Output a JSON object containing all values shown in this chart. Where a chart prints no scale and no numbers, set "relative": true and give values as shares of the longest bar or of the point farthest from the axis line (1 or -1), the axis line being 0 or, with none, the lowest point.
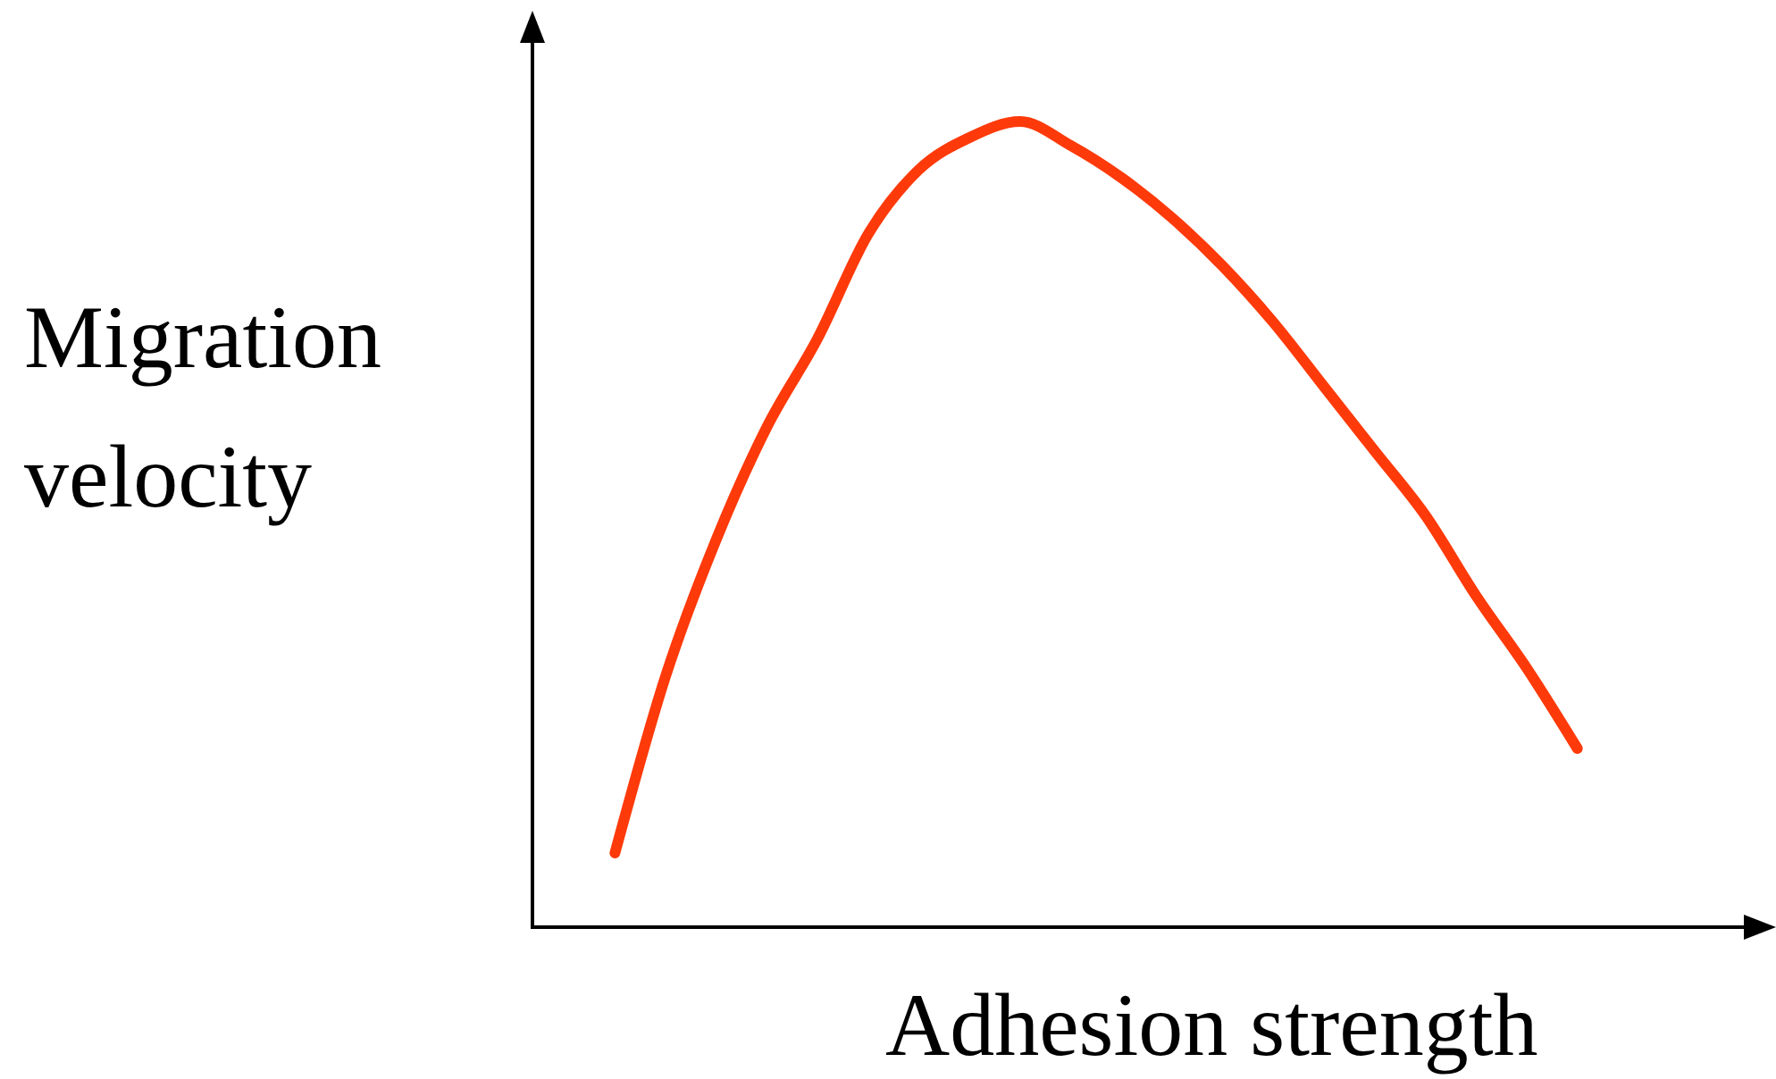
{
  "chart_data": {
    "type": "line",
    "relative": true,
    "xlabel": "Adhesion strength",
    "ylabel": "Migration\nvelocity",
    "categories": [
      null,
      null,
      null,
      null,
      null,
      null,
      null,
      null,
      null,
      null,
      null,
      null,
      null,
      null,
      null,
      null,
      null,
      null,
      null,
      null
    ],
    "series": [
      {
        "color": "#fe3a0a",
        "values": [
          0.09,
          0.31,
          0.48,
          0.62,
          0.73,
          0.86,
          0.94,
          0.98,
          1,
          0.97,
          0.93,
          0.88,
          0.82,
          0.75,
          0.67,
          0.59,
          0.51,
          0.41,
          0.32,
          0.22
        ]
      }
    ]
  }
}
